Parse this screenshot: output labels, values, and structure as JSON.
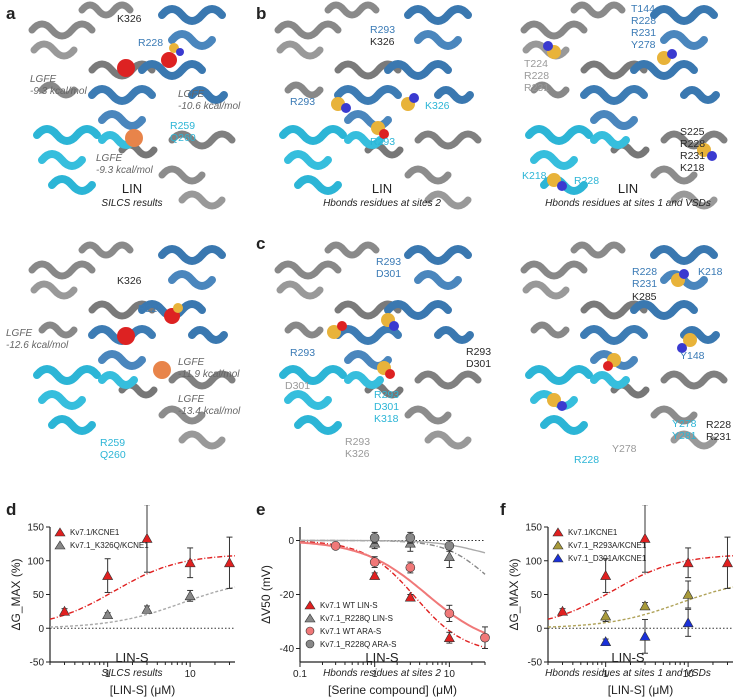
{
  "panel_labels": {
    "a": "a",
    "b": "b",
    "c": "c",
    "d": "d",
    "e": "e",
    "f": "f"
  },
  "struct_panels": [
    {
      "caption": "LIN",
      "subcaption": "SILCS results"
    },
    {
      "caption": "LIN",
      "subcaption": "Hbonds residues at sites 2"
    },
    {
      "caption": "LIN",
      "subcaption": "Hbonds residues at sites 1 and VSDs"
    },
    {
      "caption": "LIN-S",
      "subcaption": "SILCS results"
    },
    {
      "caption": "LIN-S",
      "subcaption": "Hbonds residues at sites 2"
    },
    {
      "caption": "LIN-S",
      "subcaption": "Hbonds residues at sites 1 and VSDs"
    }
  ],
  "residues": {
    "a1": {
      "k326": "K326",
      "r228": "R228",
      "r259": "R259",
      "q260": "Q260"
    },
    "a1_lgfe": {
      "l1": "LGFE\n-9.3 kcal/mol",
      "l2": "LGFE\n-10.6 kcal/mol",
      "l3": "LGFE\n-9.3 kcal/mol"
    },
    "a2": {
      "k326": "K326",
      "r228": "R228",
      "r259": "R259",
      "q260": "Q260"
    },
    "a2_lgfe": {
      "l1": "LGFE\n-12.6 kcal/mol",
      "l2": "LGFE\n-11.9 kcal/mol",
      "l3": "LGFE\n-13.4 kcal/mol"
    },
    "b1": {
      "r293a": "R293",
      "k326a": "K326",
      "r293b": "R293",
      "k326b": "K326",
      "r293c": "R293"
    },
    "b2": {
      "top": "T144\nR228\nR231\nY278",
      "left": "T224\nR228\nR231",
      "right": "S225\nR228\nR231\nK218",
      "k218": "K218",
      "r228": "R228"
    },
    "c1": {
      "top": "R293\nD301",
      "left": "R293",
      "d301": "D301",
      "right": "R293\nD301",
      "bot_cy": "R293\nD301\nK318",
      "bot_gy": "R293\nK326"
    },
    "c2": {
      "top": "R228\nR231",
      "k285": "K285",
      "k218": "K218",
      "y148": "Y148",
      "y278": "Y278\nY281",
      "r228r231": "R228\nR231",
      "gy278": "Y278",
      "r228": "R228"
    }
  },
  "charts": [
    {
      "id": "d",
      "legend": [
        "Kv7.1/KCNE1",
        "Kv7.1_K326Q/KCNE1"
      ]
    },
    {
      "id": "e",
      "legend": [
        "Kv7.1 WT LIN-S",
        "Kv7.1_R228Q LIN-S",
        "Kv7.1 WT ARA-S",
        "Kv7.1_R228Q ARA-S"
      ]
    },
    {
      "id": "f",
      "legend": [
        "Kv7.1/KCNE1",
        "Kv7.1_R293A/KCNE1",
        "Kv7.1_D301A/KCNE1"
      ]
    }
  ],
  "chart_data": [
    {
      "type": "scatter",
      "title": "",
      "xlabel": "[LIN-S] (μM)",
      "ylabel": "ΔG_MAX (%)",
      "xscale": "log",
      "xlim": [
        0.2,
        35
      ],
      "ylim": [
        -50,
        150
      ],
      "xticks": [
        "1",
        "10"
      ],
      "yticks": [
        "-50",
        "0",
        "50",
        "100",
        "150"
      ],
      "series": [
        {
          "name": "Kv7.1/KCNE1",
          "color": "#e02020",
          "marker": "triangle",
          "x": [
            0.3,
            1,
            3,
            10,
            30
          ],
          "y": [
            25,
            78,
            133,
            97,
            97
          ],
          "err": [
            4,
            25,
            50,
            22,
            38
          ]
        },
        {
          "name": "Kv7.1_K326Q/KCNE1",
          "color": "#888888",
          "marker": "triangle",
          "x": [
            1,
            3,
            10
          ],
          "y": [
            20,
            28,
            48
          ],
          "err": [
            3,
            5,
            8
          ]
        }
      ]
    },
    {
      "type": "scatter",
      "title": "",
      "xlabel": "[Serine compound] (μM)",
      "ylabel": "ΔV50 (mV)",
      "xscale": "log",
      "xlim": [
        0.1,
        30
      ],
      "ylim": [
        -45,
        5
      ],
      "xticks": [
        "0.1",
        "1",
        "10"
      ],
      "yticks": [
        "-40",
        "-20",
        "0"
      ],
      "series": [
        {
          "name": "Kv7.1 WT LIN-S",
          "color": "#e02020",
          "marker": "triangle",
          "x": [
            1,
            3,
            10
          ],
          "y": [
            -13,
            -21,
            -36
          ],
          "err": [
            1,
            1,
            2
          ]
        },
        {
          "name": "Kv7.1_R228Q LIN-S",
          "color": "#888888",
          "marker": "triangle",
          "x": [
            1,
            3,
            10
          ],
          "y": [
            -1,
            -1,
            -6
          ],
          "err": [
            2,
            3,
            4
          ]
        },
        {
          "name": "Kv7.1 WT ARA-S",
          "color": "#f07878",
          "marker": "circle",
          "x": [
            0.3,
            1,
            3,
            10,
            30
          ],
          "y": [
            -2,
            -8,
            -10,
            -27,
            -36
          ],
          "err": [
            1,
            2,
            2,
            3,
            4
          ]
        },
        {
          "name": "Kv7.1_R228Q ARA-S",
          "color": "#888888",
          "marker": "circle",
          "x": [
            1,
            3,
            10
          ],
          "y": [
            1,
            1,
            -2
          ],
          "err": [
            2,
            2,
            2
          ]
        }
      ]
    },
    {
      "type": "scatter",
      "title": "",
      "xlabel": "[LIN-S] (μM)",
      "ylabel": "ΔG_MAX (%)",
      "xscale": "log",
      "xlim": [
        0.2,
        35
      ],
      "ylim": [
        -50,
        150
      ],
      "xticks": [
        "1",
        "10"
      ],
      "yticks": [
        "-50",
        "0",
        "50",
        "100",
        "150"
      ],
      "series": [
        {
          "name": "Kv7.1/KCNE1",
          "color": "#e02020",
          "marker": "triangle",
          "x": [
            0.3,
            1,
            3,
            10,
            30
          ],
          "y": [
            25,
            78,
            133,
            97,
            97
          ],
          "err": [
            4,
            25,
            50,
            22,
            38
          ]
        },
        {
          "name": "Kv7.1_R293A/KCNE1",
          "color": "#a89a3a",
          "marker": "triangle",
          "x": [
            1,
            3,
            10
          ],
          "y": [
            18,
            33,
            50
          ],
          "err": [
            8,
            5,
            20
          ]
        },
        {
          "name": "Kv7.1_D301A/KCNE1",
          "color": "#1a30d8",
          "marker": "triangle",
          "x": [
            1,
            3,
            10
          ],
          "y": [
            -20,
            -12,
            8
          ],
          "err": [
            4,
            25,
            20
          ]
        }
      ]
    }
  ]
}
